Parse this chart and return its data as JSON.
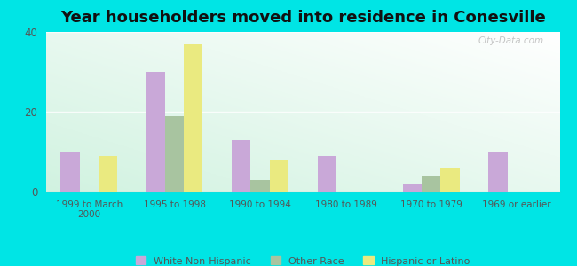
{
  "title": "Year householders moved into residence in Conesville",
  "categories": [
    "1999 to March\n2000",
    "1995 to 1998",
    "1990 to 1994",
    "1980 to 1989",
    "1970 to 1979",
    "1969 or earlier"
  ],
  "series": {
    "White Non-Hispanic": [
      10,
      30,
      13,
      9,
      2,
      10
    ],
    "Other Race": [
      0,
      19,
      3,
      0,
      4,
      0
    ],
    "Hispanic or Latino": [
      9,
      37,
      8,
      0,
      6,
      0
    ]
  },
  "colors": {
    "White Non-Hispanic": "#c9a8d8",
    "Other Race": "#a8c4a0",
    "Hispanic or Latino": "#eaea80"
  },
  "ylim": [
    0,
    40
  ],
  "yticks": [
    0,
    20,
    40
  ],
  "background_color": "#00e5e5",
  "watermark": "City-Data.com",
  "legend_items": [
    "White Non-Hispanic",
    "Other Race",
    "Hispanic or Latino"
  ],
  "bar_width": 0.22,
  "title_fontsize": 13,
  "tick_color": "#555555",
  "legend_text_color": "#555555"
}
